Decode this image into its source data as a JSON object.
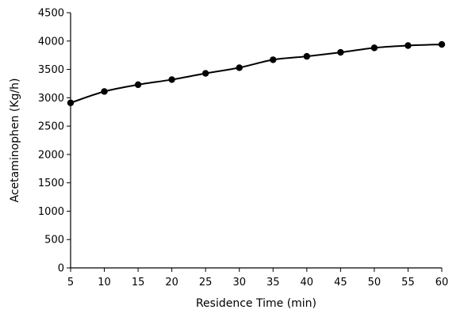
{
  "chart_data": {
    "type": "line",
    "title": "",
    "xlabel": "Residence Time (min)",
    "ylabel": "Acetaminophen (Kg/h)",
    "xlim": [
      5,
      60
    ],
    "ylim": [
      0,
      4500
    ],
    "x_ticks": [
      5,
      10,
      15,
      20,
      25,
      30,
      35,
      40,
      45,
      50,
      55,
      60
    ],
    "y_ticks": [
      0,
      500,
      1000,
      1500,
      2000,
      2500,
      3000,
      3500,
      4000,
      4500
    ],
    "grid": false,
    "legend": "none",
    "series": [
      {
        "color": "#000000",
        "marker": "circle",
        "x": [
          5,
          10,
          15,
          20,
          25,
          30,
          35,
          40,
          45,
          50,
          55,
          60
        ],
        "y": [
          2910,
          3110,
          3230,
          3320,
          3430,
          3530,
          3670,
          3730,
          3800,
          3880,
          3920,
          3940
        ]
      }
    ]
  }
}
